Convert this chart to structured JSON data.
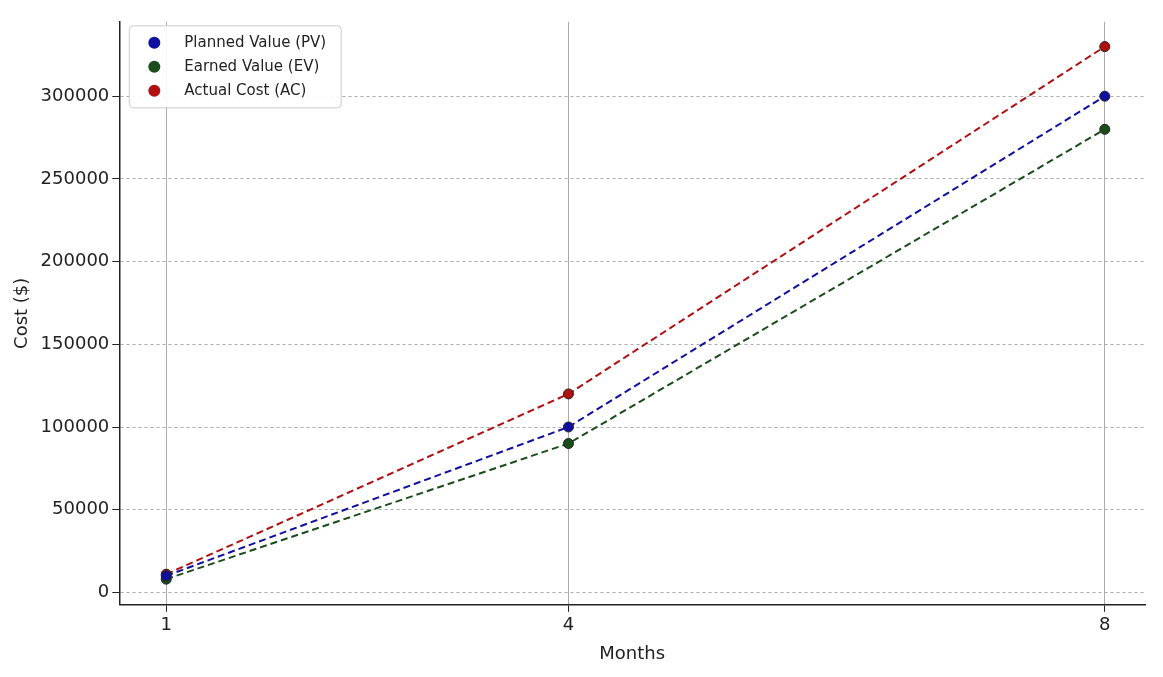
{
  "chart_data": {
    "type": "line",
    "xlabel": "Months",
    "ylabel": "Cost ($)",
    "x": [
      1,
      4,
      8
    ],
    "series": [
      {
        "name": "Planned Value (PV)",
        "color": "#1010a0",
        "values": [
          10000,
          100000,
          300000
        ]
      },
      {
        "name": "Earned Value (EV)",
        "color": "#1a4d1a",
        "values": [
          8000,
          90000,
          280000
        ]
      },
      {
        "name": "Actual Cost (AC)",
        "color": "#b01010",
        "values": [
          11000,
          120000,
          330000
        ]
      }
    ],
    "xlim": [
      0.65,
      8.3
    ],
    "xticks": [
      1,
      4,
      8
    ],
    "ylim": [
      -7500,
      345000
    ],
    "yticks": [
      0,
      50000,
      100000,
      150000,
      200000,
      250000,
      300000
    ],
    "grid": true,
    "legend": "top left",
    "marker": "circle",
    "line_style": "dashed"
  }
}
